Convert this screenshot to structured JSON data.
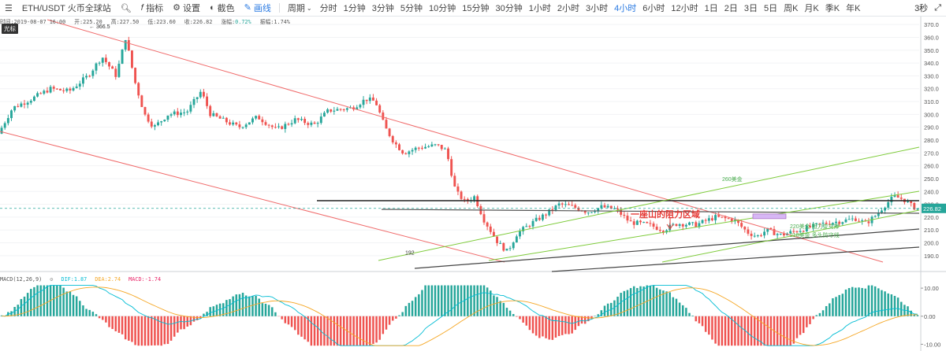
{
  "toolbar": {
    "symbol": "ETH/USDT 火币全球站",
    "tools": [
      {
        "label": "指标",
        "icon": "indicator-icon"
      },
      {
        "label": "设置",
        "icon": "gear-icon"
      },
      {
        "label": "截色",
        "icon": "color-icon"
      },
      {
        "label": "画线",
        "icon": "pencil-icon"
      }
    ],
    "period_label": "周期",
    "intervals": [
      "分时",
      "1分钟",
      "3分钟",
      "5分钟",
      "10分钟",
      "15分钟",
      "30分钟",
      "1小时",
      "2小时",
      "3小时",
      "4小时",
      "6小时",
      "12小时",
      "1日",
      "2日",
      "3日",
      "5日",
      "周K",
      "月K",
      "季K",
      "年K"
    ],
    "active_interval": "4小时",
    "right_label": "3秒"
  },
  "info": {
    "time": "时间:2019-08-07 16:00",
    "open": "开:225.20",
    "high": "高:227.50",
    "low": "低:223.60",
    "close": "收:226.82",
    "change": "涨幅:0.72%",
    "amplitude": "振幅:1.74%"
  },
  "indicator_tag": "光标",
  "macd": {
    "label": "MACD(12,26,9)",
    "dif": "DIF:1.87",
    "dea": "DEA:2.74",
    "macd": "MACD:-1.74",
    "dif_color": "#00bcd4",
    "dea_color": "#f5a623",
    "macd_color": "#e91e63"
  },
  "colors": {
    "up": "#26a69a",
    "down": "#ef5350",
    "channel": "#f06b6b",
    "green_line": "#7ecb3a",
    "black_line": "#222222",
    "accent": "#2a7ae2"
  },
  "chart_data": [
    {
      "type": "candlestick",
      "title": "",
      "ylim": [
        185,
        375
      ],
      "yticks": [
        190,
        200,
        210,
        220,
        230,
        240,
        250,
        260,
        270,
        280,
        290,
        300,
        310,
        320,
        330,
        340,
        350,
        360,
        370
      ],
      "last_price": 226.82,
      "annotations": {
        "high_label": "366.5",
        "low_label": "192",
        "resistance_zone": "一座山的阻力区域",
        "level_260": "260美金",
        "level_220": "220美金  阻力变支撑",
        "level_218": "218美金  多头防守线"
      }
    },
    {
      "type": "bar",
      "title": "",
      "ylim": [
        -11,
        12
      ],
      "yticks": [
        10,
        0,
        -10
      ],
      "ytick_labels": [
        "10.00",
        "0.00",
        "-10.00"
      ]
    }
  ]
}
